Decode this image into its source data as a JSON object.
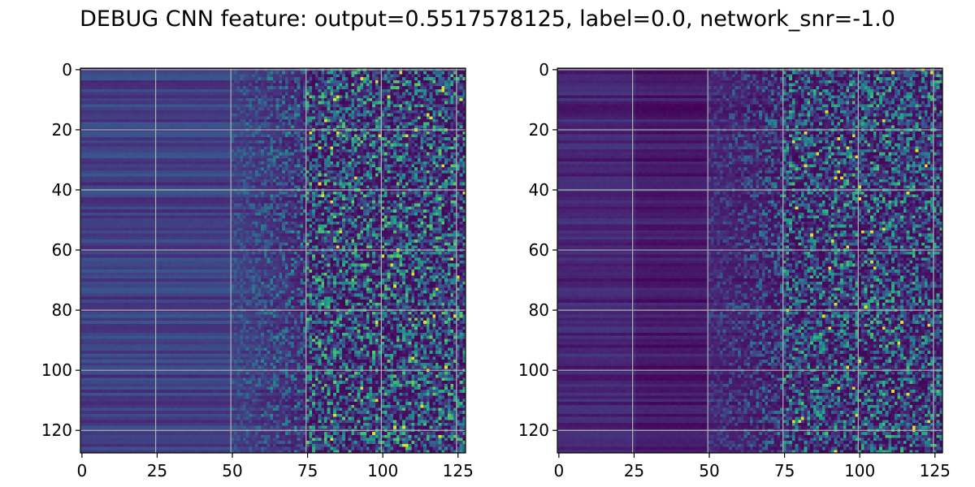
{
  "figure": {
    "suptitle": "DEBUG CNN feature: output=0.5517578125, label=0.0, network_snr=-1.0"
  },
  "chart_data": [
    {
      "type": "heatmap",
      "title": "",
      "xlabel": "",
      "ylabel": "",
      "rows": 128,
      "cols": 128,
      "xlim": [
        0,
        128
      ],
      "ylim": [
        128,
        0
      ],
      "xticks": [
        0,
        25,
        50,
        75,
        100,
        125
      ],
      "yticks": [
        0,
        20,
        40,
        60,
        80,
        100,
        120
      ],
      "grid": true,
      "colormap": "viridis",
      "structure": {
        "smooth_band_cols": [
          0,
          50
        ],
        "transition_cols": [
          50,
          75
        ],
        "noisy_band_cols": [
          75,
          128
        ]
      }
    },
    {
      "type": "heatmap",
      "title": "",
      "xlabel": "",
      "ylabel": "",
      "rows": 128,
      "cols": 128,
      "xlim": [
        0,
        128
      ],
      "ylim": [
        128,
        0
      ],
      "xticks": [
        0,
        25,
        50,
        75,
        100,
        125
      ],
      "yticks": [
        0,
        20,
        40,
        60,
        80,
        100,
        120
      ],
      "grid": true,
      "colormap": "viridis",
      "structure": {
        "smooth_band_cols": [
          0,
          50
        ],
        "transition_cols": [
          50,
          75
        ],
        "noisy_band_cols": [
          75,
          128
        ]
      }
    }
  ],
  "colors": {
    "viridis_low": "#440154",
    "viridis_mid": "#21918c",
    "viridis_high": "#fde725",
    "grid": "#b0b0b0"
  }
}
